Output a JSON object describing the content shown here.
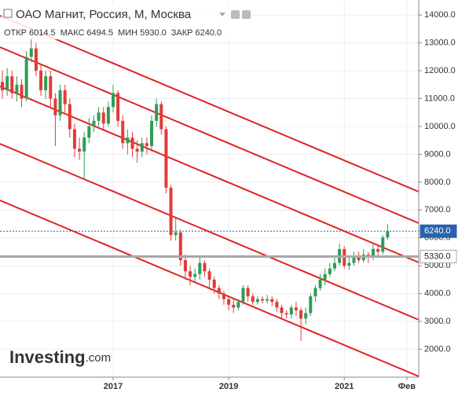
{
  "chart_data": {
    "type": "candlestick",
    "title": "ОАО Магнит, Россия, М, Москва",
    "ohlc_header": [
      {
        "label": "ОТКР",
        "text": "6014.5"
      },
      {
        "label": "МАКС",
        "text": "6494.5"
      },
      {
        "label": "МИН",
        "text": "5930.0"
      },
      {
        "label": "ЗАКР",
        "text": "6240.0"
      }
    ],
    "logo": {
      "brand": "Investing",
      "suffix": ".com"
    },
    "categories": [
      null,
      null,
      null,
      null,
      null,
      null,
      null,
      null,
      null,
      null,
      null,
      null,
      null,
      null,
      null,
      null,
      null,
      null,
      null,
      null,
      null,
      null,
      null,
      "2017",
      null,
      null,
      null,
      null,
      null,
      null,
      null,
      null,
      null,
      null,
      null,
      null,
      null,
      null,
      null,
      null,
      null,
      null,
      null,
      null,
      null,
      null,
      null,
      "2019",
      null,
      null,
      null,
      null,
      null,
      null,
      null,
      null,
      null,
      null,
      null,
      null,
      null,
      null,
      null,
      null,
      null,
      null,
      null,
      null,
      null,
      null,
      null,
      "2021",
      null,
      null,
      null,
      null,
      null,
      null,
      null,
      null,
      null,
      null,
      null,
      null,
      "Фев",
      null
    ],
    "open": [
      11600,
      11300,
      11800,
      11200,
      11500,
      11000,
      12500,
      12800,
      12000,
      11300,
      11800,
      11000,
      10400,
      11300,
      10800,
      9900,
      9200,
      9100,
      9600,
      10000,
      10200,
      10500,
      10100,
      10700,
      11200,
      10200,
      9400,
      9600,
      9200,
      9100,
      9400,
      9300,
      10200,
      10800,
      9900,
      7800,
      6100,
      6200,
      5200,
      4800,
      4600,
      4700,
      5100,
      4800,
      4500,
      4200,
      4000,
      3800,
      3600,
      3500,
      3700,
      4200,
      3900,
      3700,
      3800,
      3750,
      3800,
      3700,
      3500,
      3300,
      3250,
      3500,
      3400,
      3100,
      3300,
      3900,
      4200,
      4500,
      4700,
      4900,
      5100,
      5600,
      5000,
      5100,
      5300,
      5200,
      5400,
      5300,
      5600,
      5500,
      6014.5,
      null,
      null,
      null,
      null,
      null
    ],
    "high": [
      12000,
      12100,
      12000,
      11800,
      11700,
      12700,
      13200,
      13000,
      12200,
      12000,
      12000,
      11200,
      11500,
      11500,
      11000,
      10100,
      9600,
      9800,
      10300,
      10400,
      10700,
      10700,
      10900,
      11500,
      11300,
      10400,
      9900,
      9800,
      9500,
      9600,
      9600,
      10400,
      11000,
      10900,
      10000,
      7900,
      6700,
      6300,
      5400,
      5000,
      4900,
      5300,
      5200,
      4900,
      4600,
      4300,
      4100,
      3900,
      3800,
      3800,
      4300,
      4300,
      4000,
      3900,
      3900,
      3950,
      3900,
      3800,
      3600,
      3400,
      3600,
      3700,
      3500,
      3500,
      4000,
      4300,
      4700,
      4900,
      5100,
      5300,
      5800,
      5700,
      5300,
      5500,
      5500,
      5600,
      5500,
      5800,
      5700,
      6100,
      6494.5,
      null,
      null,
      null,
      null,
      null
    ],
    "low": [
      11000,
      11100,
      11000,
      10900,
      10700,
      10900,
      12300,
      11800,
      11100,
      11000,
      10700,
      9300,
      10200,
      10500,
      9600,
      8900,
      8800,
      8100,
      9400,
      9800,
      10000,
      9900,
      10000,
      10500,
      10000,
      9200,
      9000,
      8900,
      8700,
      8900,
      9000,
      9100,
      10000,
      9700,
      7600,
      5900,
      5900,
      5000,
      4500,
      4300,
      4400,
      4500,
      4600,
      4200,
      4000,
      3800,
      3600,
      3400,
      3300,
      3400,
      3600,
      3700,
      3600,
      3600,
      3650,
      3650,
      3550,
      3350,
      3100,
      3100,
      3100,
      3200,
      2300,
      2900,
      3200,
      3700,
      4100,
      4300,
      4600,
      4800,
      5000,
      4900,
      4850,
      5000,
      5100,
      5100,
      5100,
      5200,
      5300,
      5400,
      5930,
      null,
      null,
      null,
      null,
      null
    ],
    "close": [
      11300,
      11800,
      11200,
      11500,
      11000,
      12500,
      12800,
      12000,
      11300,
      11800,
      11000,
      10400,
      11300,
      10800,
      9900,
      9200,
      9100,
      9600,
      10000,
      10200,
      10500,
      10100,
      10700,
      11200,
      10200,
      9400,
      9600,
      9200,
      9100,
      9400,
      9300,
      10200,
      10800,
      9900,
      7800,
      6100,
      6200,
      5200,
      4800,
      4600,
      4700,
      5100,
      4800,
      4500,
      4200,
      4000,
      3800,
      3600,
      3500,
      3700,
      4200,
      3900,
      3700,
      3800,
      3750,
      3800,
      3700,
      3500,
      3300,
      3250,
      3500,
      3400,
      3100,
      3300,
      3900,
      4200,
      4500,
      4700,
      4900,
      5100,
      5600,
      5000,
      5100,
      5300,
      5200,
      5400,
      5300,
      5600,
      5500,
      6014.5,
      6240,
      null,
      null,
      null,
      null,
      null
    ],
    "up_color": "#2e9d57",
    "down_color": "#e23a3a",
    "ylim": [
      1000,
      14540
    ],
    "yticks": [
      {
        "value": 14000,
        "label": "14000.0"
      },
      {
        "value": 13000,
        "label": "13000.0"
      },
      {
        "value": 12000,
        "label": "12000.0"
      },
      {
        "value": 11000,
        "label": "11000.0"
      },
      {
        "value": 10000,
        "label": "10000.0"
      },
      {
        "value": 9000,
        "label": "9000.0"
      },
      {
        "value": 8000,
        "label": "8000.0"
      },
      {
        "value": 7000,
        "label": "7000.0"
      },
      {
        "value": 6000,
        "label": "6000.0"
      },
      {
        "value": 5000,
        "label": "5000.0"
      },
      {
        "value": 4000,
        "label": "4000.0"
      },
      {
        "value": 3000,
        "label": "3000.0"
      },
      {
        "value": 2000,
        "label": "2000.0"
      }
    ],
    "price_lines": [
      {
        "value": 6240,
        "label": "6240.0",
        "color": "#2a63ad"
      },
      {
        "value": 5330,
        "label": "5330.0",
        "color": "#a8a8a8"
      }
    ],
    "grid": true
  }
}
